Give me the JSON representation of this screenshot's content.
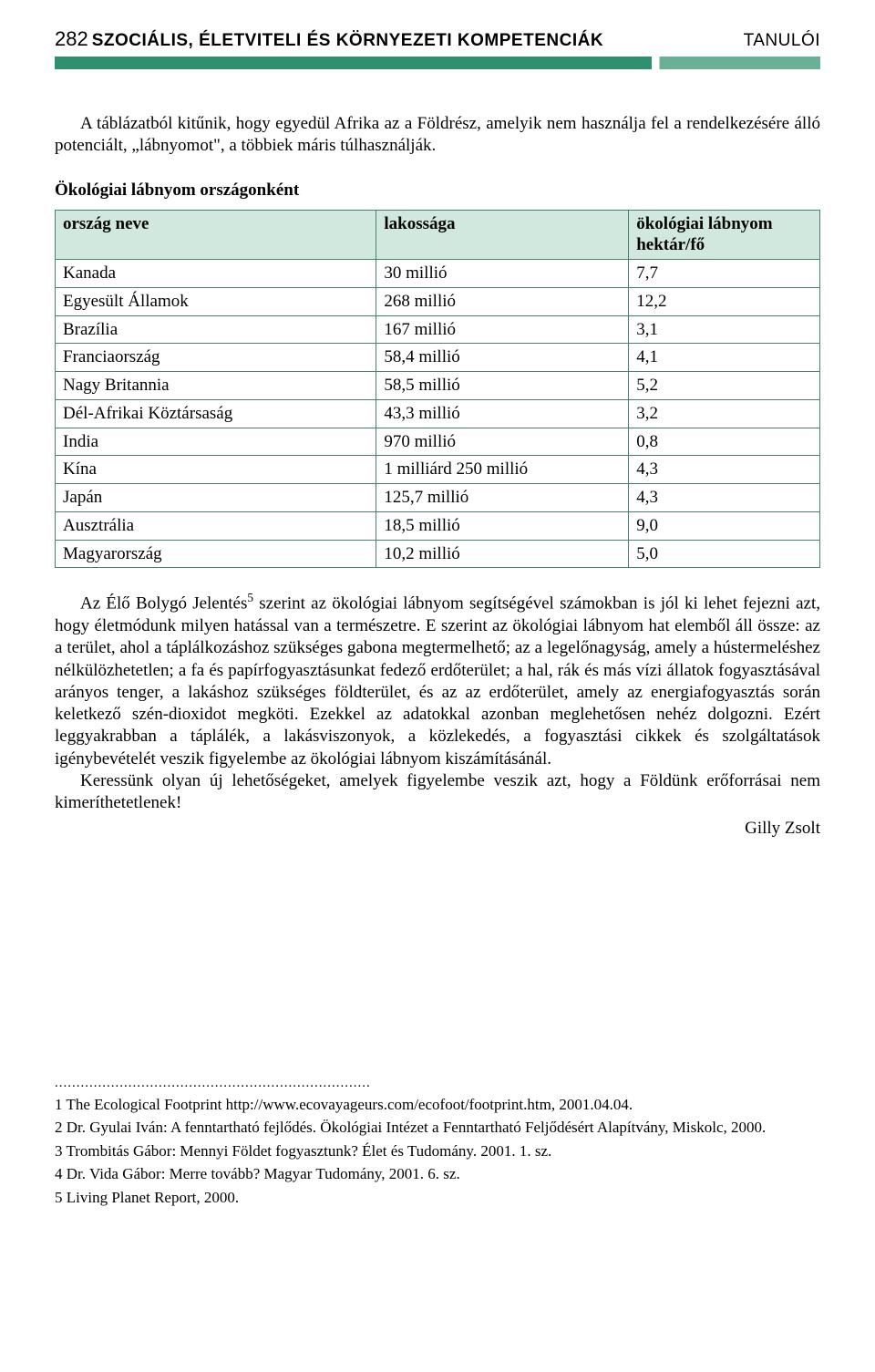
{
  "header": {
    "page_number": "282",
    "title": "SZOCIÁLIS, ÉLETVITELI ÉS KÖRNYEZETI KOMPETENCIÁK",
    "right_label": "TANULÓI",
    "bar_main_color": "#2f8f6f",
    "bar_accent_color": "#69b096"
  },
  "intro_paragraph": "A táblázatból kitűnik, hogy egyedül Afrika az a Földrész, amelyik nem használja fel a rendelkezésére álló potenciált, „lábnyomot\", a többiek máris túlhasználják.",
  "table": {
    "title": "Ökológiai lábnyom országonként",
    "header_bg": "#d0e8de",
    "border_color": "#4a8070",
    "columns": [
      "ország neve",
      "lakossága",
      "ökológiai lábnyom hektár/fő"
    ],
    "column_widths_pct": [
      42,
      33,
      25
    ],
    "rows": [
      [
        "Kanada",
        "30 millió",
        "7,7"
      ],
      [
        "Egyesült Államok",
        "268 millió",
        "12,2"
      ],
      [
        "Brazília",
        "167 millió",
        "3,1"
      ],
      [
        "Franciaország",
        "58,4 millió",
        "4,1"
      ],
      [
        "Nagy Britannia",
        "58,5 millió",
        "5,2"
      ],
      [
        "Dél-Afrikai Köztársaság",
        "43,3 millió",
        "3,2"
      ],
      [
        "India",
        "970 millió",
        "0,8"
      ],
      [
        "Kína",
        "1 milliárd 250 millió",
        "4,3"
      ],
      [
        "Japán",
        "125,7 millió",
        "4,3"
      ],
      [
        "Ausztrália",
        "18,5 millió",
        "9,0"
      ],
      [
        "Magyarország",
        "10,2 millió",
        "5,0"
      ]
    ]
  },
  "body_paragraph_1_pre": "Az Élő Bolygó Jelentés",
  "body_paragraph_1_sup": "5",
  "body_paragraph_1_post": " szerint az ökológiai lábnyom segítségével számokban is jól ki lehet fejezni azt, hogy életmódunk milyen hatással van a természetre. E szerint az ökológiai lábnyom hat elemből áll össze: az a terület, ahol a táplálkozáshoz szükséges gabona megtermelhető; az a legelőnagyság, amely a hústermeléshez nélkülözhetetlen; a fa és papírfogyasztásunkat fedező erdőterület; a hal, rák és más vízi állatok fogyasztásával arányos tenger, a lakáshoz szükséges földterület, és az az erdőterület, amely az energiafogyasztás során keletkező szén-dioxidot megköti. Ezekkel az adatokkal azonban meglehetősen nehéz dolgozni. Ezért leggyakrabban a táplálék, a lakásviszonyok, a közlekedés, a fogyasztási cikkek és szolgáltatások igénybevételét veszik figyelembe az ökológiai lábnyom kiszámításánál.",
  "body_paragraph_2": "Keressünk olyan új lehetőségeket, amelyek figyelembe veszik azt, hogy a Földünk erőforrásai nem kimeríthetetlenek!",
  "signature": "Gilly Zsolt",
  "footnotes": [
    "1  The Ecological Footprint http://www.ecovayageurs.com/ecofoot/footprint.htm, 2001.04.04.",
    "2  Dr. Gyulai Iván: A fenntartható fejlődés. Ökológiai Intézet a Fenntartható Feljődésért Alapítvány, Miskolc, 2000.",
    "3  Trombitás Gábor: Mennyi Földet fogyasztunk? Élet és Tudomány. 2001. 1. sz.",
    "4  Dr. Vida Gábor: Merre tovább? Magyar Tudomány, 2001. 6. sz.",
    "5  Living Planet Report, 2000."
  ]
}
